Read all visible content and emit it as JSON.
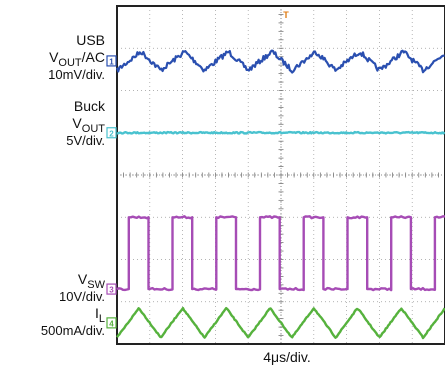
{
  "chart_data": {
    "type": "line",
    "title": "",
    "grid": true,
    "divisions": {
      "x": 10,
      "y": 8
    },
    "trigger_marker": "T",
    "time_base": {
      "value": "4",
      "unit": "μs/div",
      "text": "4μs/div."
    },
    "channels": [
      {
        "number": "1",
        "name_lines": [
          "USB",
          "V|OUT|/AC"
        ],
        "scale": "10mV/div.",
        "color": "#2a4fb0",
        "level_div": 6.7,
        "waveform": "ripple",
        "cycles": 7.5,
        "amplitude_div": 0.22
      },
      {
        "number": "2",
        "name_lines": [
          "Buck",
          "V|OUT|"
        ],
        "scale": "5V/div.",
        "color": "#49c2cf",
        "level_div": 5.0,
        "waveform": "flat",
        "cycles": 0,
        "amplitude_div": 0
      },
      {
        "number": "3",
        "name_lines": [
          "V|SW|"
        ],
        "scale": "10V/div.",
        "color": "#a64cb5",
        "level_div": 1.3,
        "waveform": "square",
        "cycles": 7.5,
        "amplitude_div": 1.7,
        "duty": 0.45
      },
      {
        "number": "4",
        "name_lines": [
          "I|L|"
        ],
        "scale": "500mA/div.",
        "color": "#56b23d",
        "level_div": 0.5,
        "waveform": "triangle",
        "cycles": 7.5,
        "amplitude_div": 0.7
      }
    ]
  }
}
